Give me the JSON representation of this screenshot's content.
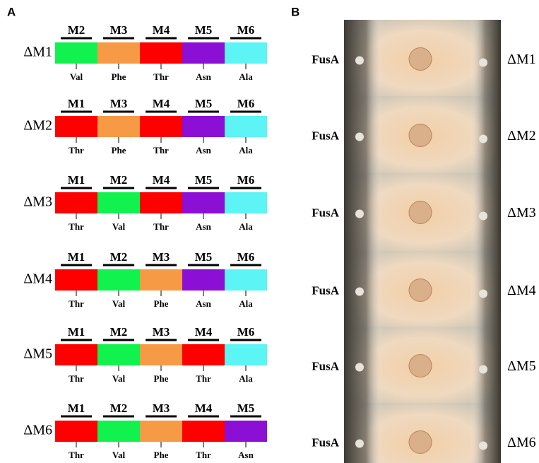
{
  "panel_a": {
    "label": "A",
    "rows": [
      {
        "label": "ΔM1",
        "modules": [
          {
            "name": "M2",
            "residue": "Val",
            "color": "#12f24f"
          },
          {
            "name": "M3",
            "residue": "Phe",
            "color": "#f79a45"
          },
          {
            "name": "M4",
            "residue": "Thr",
            "color": "#fe0000"
          },
          {
            "name": "M5",
            "residue": "Asn",
            "color": "#8c0fd6"
          },
          {
            "name": "M6",
            "residue": "Ala",
            "color": "#5cf4f4"
          }
        ]
      },
      {
        "label": "ΔM2",
        "modules": [
          {
            "name": "M1",
            "residue": "Thr",
            "color": "#fe0000"
          },
          {
            "name": "M3",
            "residue": "Phe",
            "color": "#f79a45"
          },
          {
            "name": "M4",
            "residue": "Thr",
            "color": "#fe0000"
          },
          {
            "name": "M5",
            "residue": "Asn",
            "color": "#8c0fd6"
          },
          {
            "name": "M6",
            "residue": "Ala",
            "color": "#5cf4f4"
          }
        ]
      },
      {
        "label": "ΔM3",
        "modules": [
          {
            "name": "M1",
            "residue": "Thr",
            "color": "#fe0000"
          },
          {
            "name": "M2",
            "residue": "Val",
            "color": "#12f24f"
          },
          {
            "name": "M4",
            "residue": "Thr",
            "color": "#fe0000"
          },
          {
            "name": "M5",
            "residue": "Asn",
            "color": "#8c0fd6"
          },
          {
            "name": "M6",
            "residue": "Ala",
            "color": "#5cf4f4"
          }
        ]
      },
      {
        "label": "ΔM4",
        "modules": [
          {
            "name": "M1",
            "residue": "Thr",
            "color": "#fe0000"
          },
          {
            "name": "M2",
            "residue": "Val",
            "color": "#12f24f"
          },
          {
            "name": "M3",
            "residue": "Phe",
            "color": "#f79a45"
          },
          {
            "name": "M5",
            "residue": "Asn",
            "color": "#8c0fd6"
          },
          {
            "name": "M6",
            "residue": "Ala",
            "color": "#5cf4f4"
          }
        ]
      },
      {
        "label": "ΔM5",
        "modules": [
          {
            "name": "M1",
            "residue": "Thr",
            "color": "#fe0000"
          },
          {
            "name": "M2",
            "residue": "Val",
            "color": "#12f24f"
          },
          {
            "name": "M3",
            "residue": "Phe",
            "color": "#f79a45"
          },
          {
            "name": "M4",
            "residue": "Thr",
            "color": "#fe0000"
          },
          {
            "name": "M6",
            "residue": "Ala",
            "color": "#5cf4f4"
          }
        ]
      },
      {
        "label": "ΔM6",
        "modules": [
          {
            "name": "M1",
            "residue": "Thr",
            "color": "#fe0000"
          },
          {
            "name": "M2",
            "residue": "Val",
            "color": "#12f24f"
          },
          {
            "name": "M3",
            "residue": "Phe",
            "color": "#f79a45"
          },
          {
            "name": "M4",
            "residue": "Thr",
            "color": "#fe0000"
          },
          {
            "name": "M5",
            "residue": "Asn",
            "color": "#8c0fd6"
          }
        ]
      }
    ]
  },
  "panel_b": {
    "label": "B",
    "plates": [
      {
        "left": "FusA",
        "right": "ΔM1"
      },
      {
        "left": "FusA",
        "right": "ΔM2"
      },
      {
        "left": "FusA",
        "right": "ΔM3"
      },
      {
        "left": "FusA",
        "right": "ΔM4"
      },
      {
        "left": "FusA",
        "right": "ΔM5"
      },
      {
        "left": "FusA",
        "right": "ΔM6"
      }
    ]
  }
}
